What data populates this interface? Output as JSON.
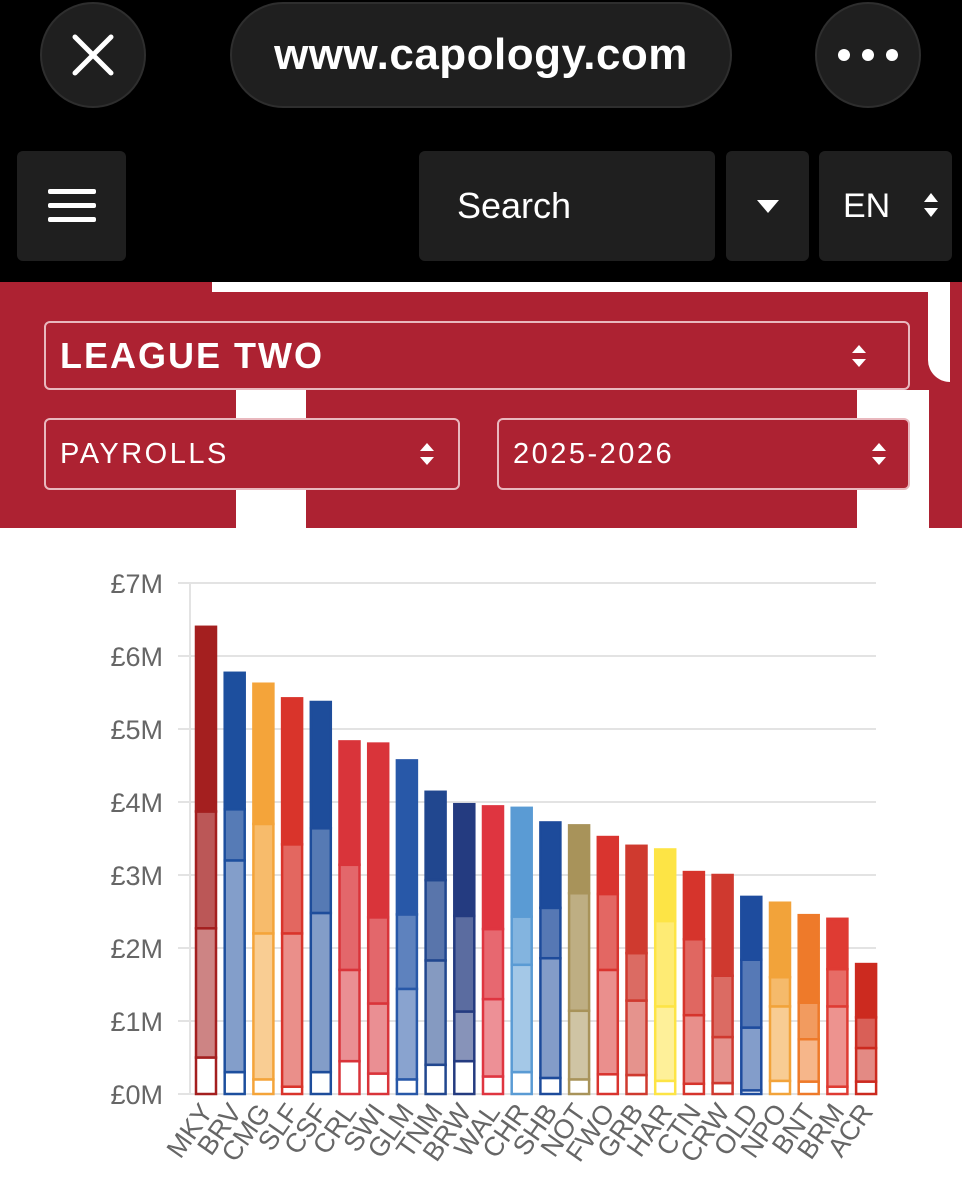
{
  "browser": {
    "url": "www.capology.com"
  },
  "header": {
    "search_label": "Search",
    "language": "EN"
  },
  "filters": {
    "league": "LEAGUE TWO",
    "view": "PAYROLLS",
    "season": "2025-2026"
  },
  "colors": {
    "brand_red": "#ad2232",
    "header_black": "#000000"
  },
  "chart_data": {
    "type": "bar",
    "stacked": true,
    "currency_prefix": "£",
    "ylim": [
      0,
      7
    ],
    "yticks": [
      "£0M",
      "£1M",
      "£2M",
      "£3M",
      "£4M",
      "£5M",
      "£6M",
      "£7M"
    ],
    "grid": true,
    "categories": [
      "MKY",
      "BRV",
      "CMG",
      "SLF",
      "CSF",
      "CRL",
      "SWI",
      "GLM",
      "TNM",
      "BRW",
      "WAL",
      "CHR",
      "SHB",
      "NOT",
      "FWO",
      "GRB",
      "HAR",
      "CTN",
      "CRW",
      "OLD",
      "NPO",
      "BNT",
      "BRM",
      "ACR"
    ],
    "totals": [
      6.4,
      5.77,
      5.62,
      5.42,
      5.37,
      4.83,
      4.8,
      4.57,
      4.14,
      3.97,
      3.94,
      3.92,
      3.72,
      3.68,
      3.52,
      3.4,
      3.35,
      3.04,
      3.0,
      2.7,
      2.62,
      2.45,
      2.4,
      1.78
    ],
    "segment_boundaries": [
      [
        0.5,
        2.27,
        3.87
      ],
      [
        0.3,
        3.2,
        3.9
      ],
      [
        0.2,
        2.2,
        3.7
      ],
      [
        0.1,
        2.2,
        3.42
      ],
      [
        0.3,
        2.48,
        3.64
      ],
      [
        0.45,
        1.7,
        3.14
      ],
      [
        0.28,
        1.24,
        2.42
      ],
      [
        0.2,
        1.44,
        2.46
      ],
      [
        0.4,
        1.83,
        2.93
      ],
      [
        0.45,
        1.13,
        2.44
      ],
      [
        0.24,
        1.3,
        2.26
      ],
      [
        0.3,
        1.77,
        2.43
      ],
      [
        0.22,
        1.86,
        2.55
      ],
      [
        0.2,
        1.14,
        2.75
      ],
      [
        0.27,
        1.7,
        2.74
      ],
      [
        0.26,
        1.28,
        1.93
      ],
      [
        0.18,
        1.2,
        2.37
      ],
      [
        0.14,
        1.08,
        2.12
      ],
      [
        0.15,
        0.78,
        1.62
      ],
      [
        0.05,
        0.91,
        1.84
      ],
      [
        0.18,
        1.2,
        1.6
      ],
      [
        0.17,
        0.75,
        1.25
      ],
      [
        0.1,
        1.2,
        1.71
      ],
      [
        0.17,
        0.63,
        1.05
      ]
    ],
    "bar_colors": [
      "#a41f1f",
      "#1d4f9e",
      "#f4a43a",
      "#d9342b",
      "#1e4d9b",
      "#d9343a",
      "#d9343a",
      "#2858a8",
      "#21478f",
      "#243b80",
      "#df3540",
      "#5a9bd4",
      "#1d4b9b",
      "#a8935a",
      "#d9342f",
      "#cf3a2f",
      "#fde445",
      "#d6342c",
      "#cf392f",
      "#1e4c9e",
      "#f2a33a",
      "#ee7a2a",
      "#df3b33",
      "#cc2a1f"
    ]
  }
}
